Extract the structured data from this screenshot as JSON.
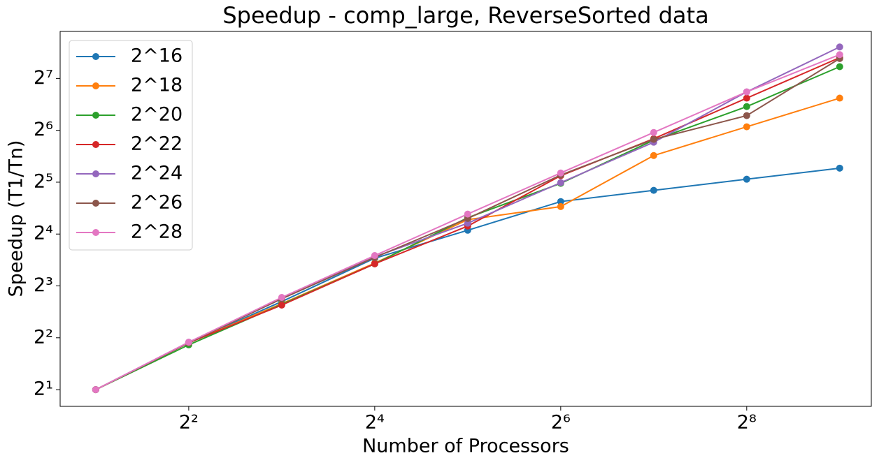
{
  "chart_data": {
    "type": "line",
    "title": "Speedup - comp_large, ReverseSorted data",
    "x_label": "Number of Processors",
    "y_label": "Speedup (T1/Tn)",
    "x": [
      2,
      4,
      8,
      16,
      32,
      64,
      128,
      256,
      512
    ],
    "series": [
      {
        "name": "2^16",
        "color": "#1f77b4",
        "values": [
          2,
          3.74,
          6.49,
          11.58,
          16.83,
          24.7,
          28.7,
          33.3,
          38.6
        ]
      },
      {
        "name": "2^18",
        "color": "#ff7f0e",
        "values": [
          2,
          3.74,
          6.31,
          10.85,
          19.4,
          23.1,
          45.7,
          67.1,
          98.4
        ]
      },
      {
        "name": "2^20",
        "color": "#2ca02c",
        "values": [
          2,
          3.64,
          6.25,
          10.75,
          19.9,
          31.5,
          56.1,
          87.9,
          149.8
        ]
      },
      {
        "name": "2^22",
        "color": "#d62728",
        "values": [
          2,
          3.74,
          6.19,
          10.75,
          17.8,
          34.9,
          57.2,
          98.4,
          169
        ]
      },
      {
        "name": "2^24",
        "color": "#9467bd",
        "values": [
          2,
          3.77,
          6.74,
          11.8,
          18.5,
          31.8,
          54.6,
          107,
          195
        ]
      },
      {
        "name": "2^26",
        "color": "#8c564b",
        "values": [
          2,
          3.74,
          6.74,
          11.7,
          19.7,
          35.2,
          56.7,
          77.9,
          167
        ]
      },
      {
        "name": "2^28",
        "color": "#e377c2",
        "values": [
          2,
          3.77,
          6.86,
          12.0,
          20.9,
          36.2,
          62.2,
          107,
          176
        ]
      }
    ],
    "xscale": "log2",
    "yscale": "log2",
    "xlim": [
      1.534,
      648
    ],
    "ylim": [
      1.6,
      240
    ],
    "xticks": [
      {
        "value": 4,
        "label": "2²"
      },
      {
        "value": 16,
        "label": "2⁴"
      },
      {
        "value": 64,
        "label": "2⁶"
      },
      {
        "value": 256,
        "label": "2⁸"
      }
    ],
    "yticks": [
      {
        "value": 2,
        "label": "2¹"
      },
      {
        "value": 4,
        "label": "2²"
      },
      {
        "value": 8,
        "label": "2³"
      },
      {
        "value": 16,
        "label": "2⁴"
      },
      {
        "value": 32,
        "label": "2⁵"
      },
      {
        "value": 64,
        "label": "2⁶"
      },
      {
        "value": 128,
        "label": "2⁷"
      }
    ],
    "grid": false,
    "legend": "upper left"
  }
}
